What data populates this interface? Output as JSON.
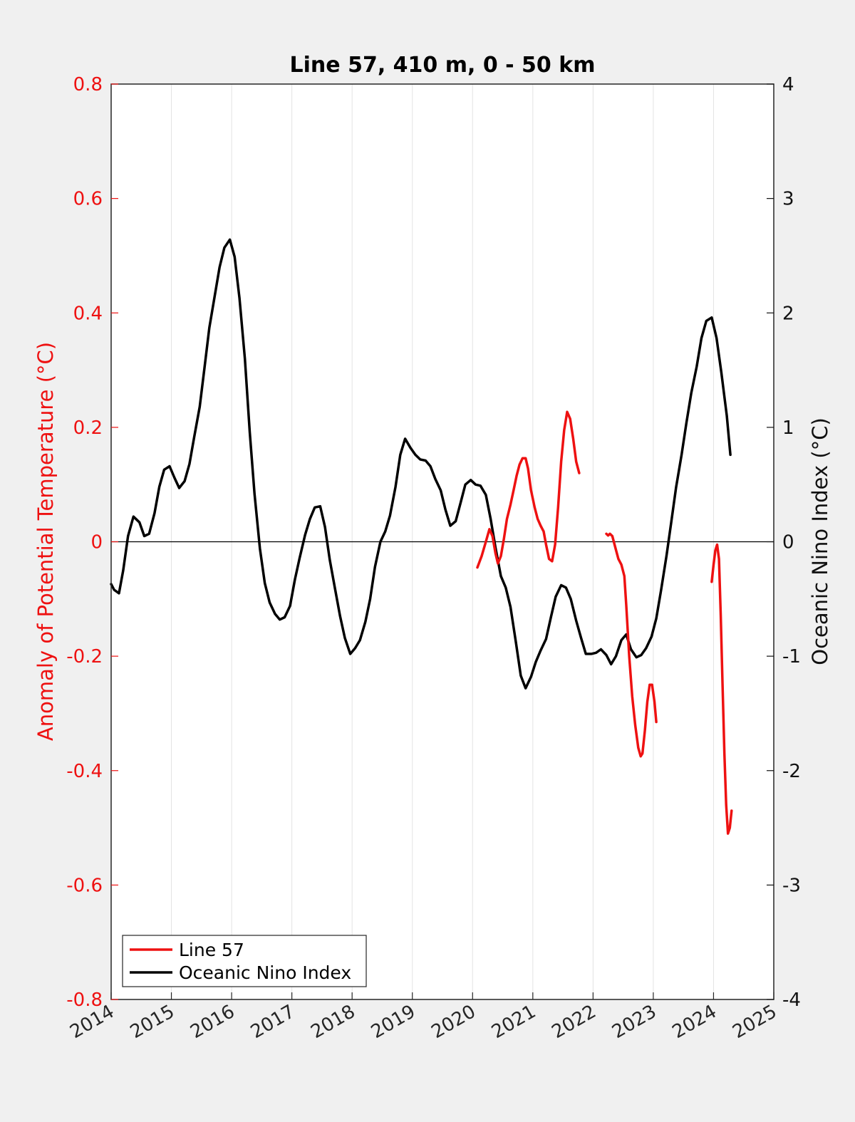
{
  "chart_data": {
    "type": "line",
    "title": "Line 57, 410 m, 0 - 50 km",
    "xlabel": "",
    "ylabel_left": "Anomaly of Potential Temperature (°C)",
    "ylabel_right": "Oceanic Nino Index (°C)",
    "xlim": [
      2014,
      2025
    ],
    "ylim_left": [
      -0.8,
      0.8
    ],
    "ylim_right": [
      -4,
      4
    ],
    "x_ticks": [
      "2014",
      "2015",
      "2016",
      "2017",
      "2018",
      "2019",
      "2020",
      "2021",
      "2022",
      "2023",
      "2024",
      "2025"
    ],
    "y_ticks_left": [
      "0.8",
      "0.6",
      "0.4",
      "0.2",
      "0",
      "-0.2",
      "-0.4",
      "-0.6",
      "-0.8"
    ],
    "y_ticks_right": [
      "4",
      "3",
      "2",
      "1",
      "0",
      "-1",
      "-2",
      "-3",
      "-4"
    ],
    "grid": "vertical",
    "zero_line": true,
    "legend_placement": "bottom-left",
    "colors": {
      "left_axis": "#ee1111",
      "right_axis": "#111111",
      "line57": "#ee1111",
      "oni": "#000000"
    },
    "series": [
      {
        "name": "Line 57",
        "axis": "left",
        "color": "#ee1111",
        "segments": [
          [
            [
              2020.08,
              -0.045
            ],
            [
              2020.15,
              -0.025
            ],
            [
              2020.22,
              0.0
            ],
            [
              2020.28,
              0.022
            ],
            [
              2020.33,
              0.01
            ],
            [
              2020.38,
              -0.02
            ],
            [
              2020.42,
              -0.038
            ],
            [
              2020.47,
              -0.025
            ],
            [
              2020.52,
              0.005
            ],
            [
              2020.57,
              0.04
            ],
            [
              2020.63,
              0.065
            ],
            [
              2020.68,
              0.09
            ],
            [
              2020.73,
              0.115
            ],
            [
              2020.78,
              0.135
            ],
            [
              2020.83,
              0.146
            ],
            [
              2020.88,
              0.146
            ],
            [
              2020.92,
              0.128
            ],
            [
              2020.97,
              0.09
            ],
            [
              2021.03,
              0.06
            ],
            [
              2021.08,
              0.04
            ],
            [
              2021.13,
              0.028
            ],
            [
              2021.18,
              0.018
            ],
            [
              2021.22,
              -0.005
            ],
            [
              2021.27,
              -0.03
            ],
            [
              2021.32,
              -0.034
            ],
            [
              2021.37,
              -0.005
            ],
            [
              2021.42,
              0.06
            ],
            [
              2021.47,
              0.14
            ],
            [
              2021.52,
              0.195
            ],
            [
              2021.57,
              0.227
            ],
            [
              2021.62,
              0.215
            ],
            [
              2021.67,
              0.18
            ],
            [
              2021.72,
              0.14
            ],
            [
              2021.77,
              0.12
            ]
          ],
          [
            [
              2022.22,
              0.014
            ],
            [
              2022.25,
              0.011
            ],
            [
              2022.28,
              0.014
            ],
            [
              2022.32,
              0.01
            ],
            [
              2022.37,
              -0.01
            ],
            [
              2022.42,
              -0.03
            ],
            [
              2022.47,
              -0.04
            ],
            [
              2022.52,
              -0.06
            ],
            [
              2022.55,
              -0.11
            ],
            [
              2022.6,
              -0.2
            ],
            [
              2022.65,
              -0.27
            ],
            [
              2022.7,
              -0.32
            ],
            [
              2022.75,
              -0.36
            ],
            [
              2022.79,
              -0.375
            ],
            [
              2022.82,
              -0.37
            ],
            [
              2022.86,
              -0.33
            ],
            [
              2022.9,
              -0.28
            ],
            [
              2022.94,
              -0.25
            ],
            [
              2022.98,
              -0.25
            ],
            [
              2023.02,
              -0.28
            ],
            [
              2023.05,
              -0.315
            ]
          ],
          [
            [
              2023.97,
              -0.07
            ],
            [
              2024.0,
              -0.04
            ],
            [
              2024.03,
              -0.015
            ],
            [
              2024.06,
              -0.005
            ],
            [
              2024.09,
              -0.03
            ],
            [
              2024.12,
              -0.13
            ],
            [
              2024.15,
              -0.25
            ],
            [
              2024.18,
              -0.37
            ],
            [
              2024.21,
              -0.46
            ],
            [
              2024.24,
              -0.51
            ],
            [
              2024.27,
              -0.5
            ],
            [
              2024.3,
              -0.47
            ]
          ]
        ]
      },
      {
        "name": "Oceanic Nino Index",
        "axis": "right",
        "color": "#000000",
        "segments": [
          [
            [
              2014.0,
              -0.37
            ],
            [
              2014.05,
              -0.42
            ],
            [
              2014.13,
              -0.45
            ],
            [
              2014.2,
              -0.25
            ],
            [
              2014.28,
              0.05
            ],
            [
              2014.37,
              0.22
            ],
            [
              2014.47,
              0.17
            ],
            [
              2014.55,
              0.05
            ],
            [
              2014.63,
              0.07
            ],
            [
              2014.72,
              0.25
            ],
            [
              2014.8,
              0.48
            ],
            [
              2014.88,
              0.63
            ],
            [
              2014.97,
              0.66
            ],
            [
              2015.05,
              0.56
            ],
            [
              2015.13,
              0.47
            ],
            [
              2015.22,
              0.53
            ],
            [
              2015.3,
              0.68
            ],
            [
              2015.38,
              0.92
            ],
            [
              2015.47,
              1.18
            ],
            [
              2015.55,
              1.52
            ],
            [
              2015.63,
              1.87
            ],
            [
              2015.72,
              2.15
            ],
            [
              2015.8,
              2.4
            ],
            [
              2015.88,
              2.57
            ],
            [
              2015.97,
              2.64
            ],
            [
              2016.05,
              2.49
            ],
            [
              2016.13,
              2.13
            ],
            [
              2016.22,
              1.6
            ],
            [
              2016.3,
              0.96
            ],
            [
              2016.38,
              0.42
            ],
            [
              2016.47,
              -0.06
            ],
            [
              2016.55,
              -0.36
            ],
            [
              2016.63,
              -0.53
            ],
            [
              2016.72,
              -0.63
            ],
            [
              2016.8,
              -0.68
            ],
            [
              2016.88,
              -0.66
            ],
            [
              2016.97,
              -0.56
            ],
            [
              2017.05,
              -0.33
            ],
            [
              2017.13,
              -0.14
            ],
            [
              2017.22,
              0.06
            ],
            [
              2017.3,
              0.2
            ],
            [
              2017.38,
              0.3
            ],
            [
              2017.47,
              0.31
            ],
            [
              2017.55,
              0.13
            ],
            [
              2017.63,
              -0.16
            ],
            [
              2017.72,
              -0.42
            ],
            [
              2017.8,
              -0.65
            ],
            [
              2017.88,
              -0.84
            ],
            [
              2017.97,
              -0.98
            ],
            [
              2018.05,
              -0.93
            ],
            [
              2018.13,
              -0.86
            ],
            [
              2018.22,
              -0.7
            ],
            [
              2018.3,
              -0.5
            ],
            [
              2018.38,
              -0.22
            ],
            [
              2018.47,
              0.0
            ],
            [
              2018.55,
              0.09
            ],
            [
              2018.63,
              0.23
            ],
            [
              2018.72,
              0.48
            ],
            [
              2018.8,
              0.76
            ],
            [
              2018.88,
              0.9
            ],
            [
              2018.97,
              0.82
            ],
            [
              2019.05,
              0.76
            ],
            [
              2019.13,
              0.72
            ],
            [
              2019.22,
              0.71
            ],
            [
              2019.3,
              0.66
            ],
            [
              2019.38,
              0.55
            ],
            [
              2019.47,
              0.45
            ],
            [
              2019.55,
              0.28
            ],
            [
              2019.63,
              0.14
            ],
            [
              2019.72,
              0.18
            ],
            [
              2019.8,
              0.34
            ],
            [
              2019.88,
              0.5
            ],
            [
              2019.97,
              0.54
            ],
            [
              2020.05,
              0.5
            ],
            [
              2020.13,
              0.49
            ],
            [
              2020.22,
              0.41
            ],
            [
              2020.3,
              0.2
            ],
            [
              2020.38,
              -0.05
            ],
            [
              2020.47,
              -0.3
            ],
            [
              2020.55,
              -0.4
            ],
            [
              2020.63,
              -0.57
            ],
            [
              2020.72,
              -0.88
            ],
            [
              2020.8,
              -1.17
            ],
            [
              2020.88,
              -1.28
            ],
            [
              2020.97,
              -1.18
            ],
            [
              2021.05,
              -1.05
            ],
            [
              2021.13,
              -0.95
            ],
            [
              2021.22,
              -0.85
            ],
            [
              2021.3,
              -0.66
            ],
            [
              2021.38,
              -0.48
            ],
            [
              2021.47,
              -0.38
            ],
            [
              2021.55,
              -0.4
            ],
            [
              2021.63,
              -0.5
            ],
            [
              2021.72,
              -0.69
            ],
            [
              2021.8,
              -0.84
            ],
            [
              2021.88,
              -0.98
            ],
            [
              2021.97,
              -0.98
            ],
            [
              2022.05,
              -0.97
            ],
            [
              2022.13,
              -0.94
            ],
            [
              2022.22,
              -0.99
            ],
            [
              2022.3,
              -1.07
            ],
            [
              2022.38,
              -1.0
            ],
            [
              2022.47,
              -0.86
            ],
            [
              2022.55,
              -0.81
            ],
            [
              2022.63,
              -0.94
            ],
            [
              2022.72,
              -1.01
            ],
            [
              2022.8,
              -0.99
            ],
            [
              2022.88,
              -0.93
            ],
            [
              2022.97,
              -0.83
            ],
            [
              2023.05,
              -0.67
            ],
            [
              2023.13,
              -0.42
            ],
            [
              2023.22,
              -0.12
            ],
            [
              2023.3,
              0.18
            ],
            [
              2023.38,
              0.48
            ],
            [
              2023.47,
              0.76
            ],
            [
              2023.55,
              1.04
            ],
            [
              2023.63,
              1.3
            ],
            [
              2023.72,
              1.53
            ],
            [
              2023.8,
              1.78
            ],
            [
              2023.88,
              1.93
            ],
            [
              2023.97,
              1.96
            ],
            [
              2024.05,
              1.78
            ],
            [
              2024.13,
              1.48
            ],
            [
              2024.22,
              1.1
            ],
            [
              2024.28,
              0.76
            ]
          ]
        ]
      }
    ]
  }
}
